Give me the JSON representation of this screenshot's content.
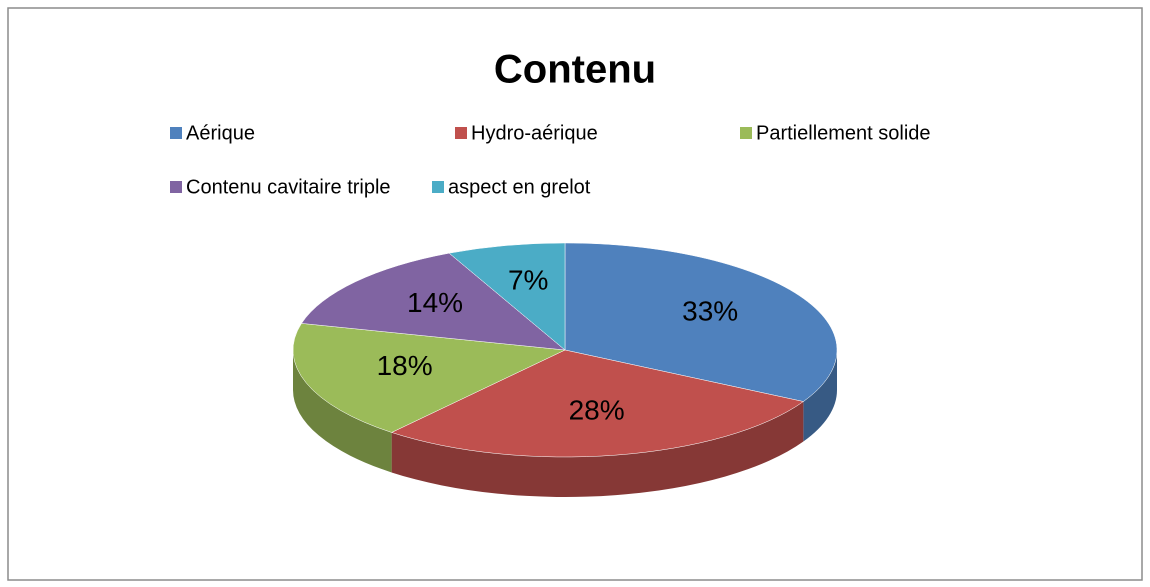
{
  "chart_data": {
    "type": "pie3d",
    "title": "Contenu",
    "categories": [
      "Aérique",
      "Hydro-aérique",
      "Partiellement solide",
      "Contenu cavitaire triple",
      "aspect en grelot"
    ],
    "values": [
      33,
      28,
      18,
      14,
      7
    ],
    "value_labels": [
      "33%",
      "28%",
      "18%",
      "14%",
      "7%"
    ],
    "colors": [
      "#4f81bd",
      "#c0504d",
      "#9bbb59",
      "#8064a2",
      "#4bacc6"
    ],
    "legend": "top"
  }
}
